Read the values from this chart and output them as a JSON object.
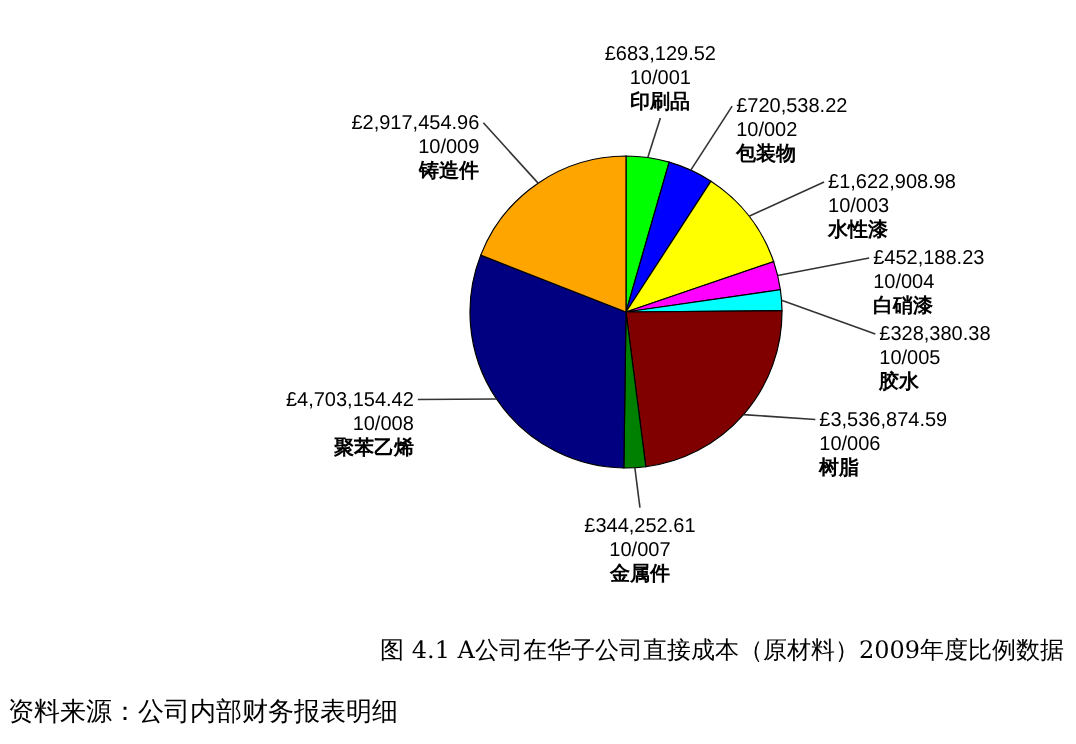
{
  "chart_data": {
    "type": "pie",
    "title": "图 4.1  A公司在华子公司直接成本（原材料）2009年度比例数据",
    "categories": [
      "10/001 印刷品",
      "10/002 包装物",
      "10/003 水性漆",
      "10/004 白硝漆",
      "10/005 胶水",
      "10/006 树脂",
      "10/007 金属件",
      "10/008 聚苯乙烯",
      "10/009 铸造件"
    ],
    "values": [
      683129.52,
      720538.22,
      1622908.98,
      452188.23,
      328380.38,
      3536874.59,
      344252.61,
      4703154.42,
      2917454.96
    ],
    "value_labels": [
      "£683,129.52",
      "£720,538.22",
      "£1,622,908.98",
      "£452,188.23",
      "£328,380.38",
      "£3,536,874.59",
      "£344,252.61",
      "£4,703,154.42",
      "£2,917,454.96"
    ],
    "colors": [
      "#00ff00",
      "#0000ff",
      "#ffff00",
      "#ff00ff",
      "#00ffff",
      "#800000",
      "#008000",
      "#000080",
      "#ffa500"
    ],
    "annotations": [
      "资料来源：公司内部财务报表明细"
    ]
  }
}
